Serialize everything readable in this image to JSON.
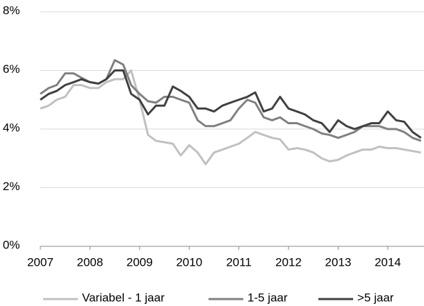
{
  "chart_data": {
    "type": "line",
    "x": [
      2007,
      2007.17,
      2007.33,
      2007.5,
      2007.67,
      2007.83,
      2008,
      2008.17,
      2008.33,
      2008.5,
      2008.67,
      2008.83,
      2009,
      2009.17,
      2009.33,
      2009.5,
      2009.67,
      2009.83,
      2010,
      2010.17,
      2010.33,
      2010.5,
      2010.67,
      2010.83,
      2011,
      2011.17,
      2011.33,
      2011.5,
      2011.67,
      2011.83,
      2012,
      2012.17,
      2012.33,
      2012.5,
      2012.67,
      2012.83,
      2013,
      2013.17,
      2013.33,
      2013.5,
      2013.67,
      2013.83,
      2014,
      2014.17,
      2014.33,
      2014.5,
      2014.67
    ],
    "series": [
      {
        "name": "Variabel - 1 jaar",
        "color": "#c0c0c0",
        "values": [
          4.7,
          4.8,
          5.0,
          5.1,
          5.5,
          5.5,
          5.4,
          5.4,
          5.6,
          5.7,
          5.7,
          6.0,
          5.0,
          3.8,
          3.6,
          3.55,
          3.5,
          3.1,
          3.45,
          3.2,
          2.8,
          3.2,
          3.3,
          3.4,
          3.5,
          3.7,
          3.9,
          3.8,
          3.7,
          3.65,
          3.3,
          3.35,
          3.3,
          3.2,
          3.0,
          2.9,
          2.95,
          3.1,
          3.2,
          3.3,
          3.3,
          3.4,
          3.35,
          3.35,
          3.3,
          3.25,
          3.2
        ]
      },
      {
        "name": "1-5 jaar",
        "color": "#808080",
        "values": [
          5.2,
          5.4,
          5.5,
          5.9,
          5.9,
          5.75,
          5.6,
          5.55,
          5.7,
          6.35,
          6.2,
          5.5,
          5.2,
          4.95,
          4.9,
          5.1,
          5.1,
          5.0,
          4.9,
          4.3,
          4.1,
          4.1,
          4.2,
          4.3,
          4.7,
          5.0,
          4.9,
          4.4,
          4.3,
          4.4,
          4.2,
          4.2,
          4.1,
          4.0,
          3.85,
          3.8,
          3.7,
          3.8,
          3.9,
          4.1,
          4.1,
          4.1,
          4.0,
          4.0,
          3.9,
          3.7,
          3.6
        ]
      },
      {
        "name": ">5 jaar",
        "color": "#404040",
        "values": [
          5.0,
          5.2,
          5.3,
          5.5,
          5.6,
          5.7,
          5.6,
          5.55,
          5.7,
          6.0,
          6.0,
          5.2,
          5.0,
          4.5,
          4.8,
          4.8,
          5.45,
          5.3,
          5.1,
          4.7,
          4.7,
          4.6,
          4.8,
          4.9,
          5.0,
          5.1,
          5.25,
          4.6,
          4.7,
          5.1,
          4.7,
          4.6,
          4.5,
          4.3,
          4.2,
          3.9,
          4.3,
          4.1,
          4.0,
          4.1,
          4.2,
          4.2,
          4.6,
          4.3,
          4.25,
          3.9,
          3.7
        ]
      }
    ],
    "xlim": [
      2007,
      2014.73
    ],
    "xticks": [
      2007,
      2008,
      2009,
      2010,
      2011,
      2012,
      2013,
      2014
    ],
    "ylim": [
      0,
      8
    ],
    "yticks": [
      {
        "value": 0,
        "label": "0%"
      },
      {
        "value": 2,
        "label": "2%"
      },
      {
        "value": 4,
        "label": "4%"
      },
      {
        "value": 6,
        "label": "6%"
      },
      {
        "value": 8,
        "label": "8%"
      }
    ],
    "grid": true,
    "legend": "bottom"
  }
}
